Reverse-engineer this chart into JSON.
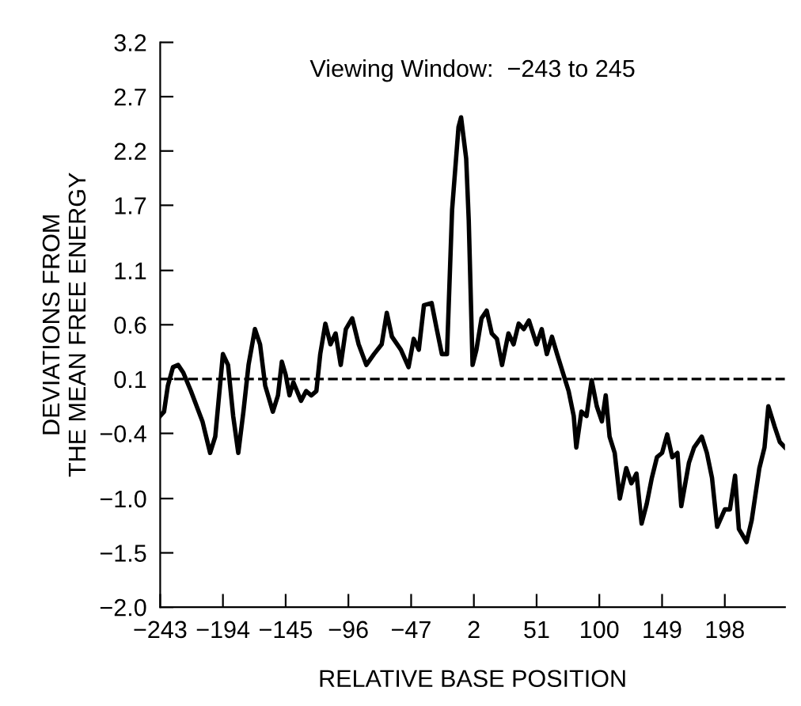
{
  "chart_data": {
    "type": "line",
    "title": "Viewing Window:  −243 to 245",
    "xlabel": "RELATIVE BASE POSITION",
    "ylabel": "DEVIATIONS FROM\nTHE MEAN FREE ENERGY",
    "series": [
      {
        "color": "#000000",
        "x": [
          -243,
          -240,
          -237,
          -233,
          -229,
          -225,
          -219,
          -210,
          -204,
          -200,
          -194,
          -190,
          -186,
          -182,
          -178,
          -174,
          -169,
          -165,
          -161,
          -155,
          -151,
          -148,
          -145,
          -142,
          -139,
          -133,
          -129,
          -125,
          -121,
          -118,
          -114,
          -110,
          -106,
          -102,
          -98,
          -93,
          -88,
          -82,
          -76,
          -70,
          -66,
          -62,
          -55,
          -49,
          -45,
          -41,
          -37,
          -31,
          -27,
          -23,
          -19,
          -15,
          -10,
          -8,
          -4,
          -2,
          1,
          4,
          8,
          12,
          16,
          20,
          24,
          29,
          33,
          37,
          41,
          45,
          51,
          55,
          59,
          63,
          67,
          72,
          76,
          80,
          82,
          86,
          90,
          94,
          98,
          102,
          105,
          108,
          112,
          116,
          121,
          125,
          129,
          133,
          137,
          141,
          145,
          149,
          153,
          157,
          161,
          164,
          170,
          174,
          180,
          184,
          188,
          192,
          198,
          202,
          206,
          209,
          215,
          219,
          225,
          229,
          232,
          237,
          241,
          245
        ],
        "values": [
          -0.24,
          -0.2,
          0.04,
          0.21,
          0.23,
          0.16,
          -0.01,
          -0.29,
          -0.58,
          -0.43,
          0.33,
          0.23,
          -0.24,
          -0.58,
          -0.2,
          0.23,
          0.56,
          0.42,
          0.04,
          -0.2,
          -0.05,
          0.26,
          0.14,
          -0.05,
          0.07,
          -0.1,
          -0.01,
          -0.05,
          -0.01,
          0.33,
          0.61,
          0.42,
          0.52,
          0.23,
          0.56,
          0.66,
          0.42,
          0.23,
          0.33,
          0.42,
          0.71,
          0.49,
          0.37,
          0.21,
          0.47,
          0.37,
          0.78,
          0.8,
          0.56,
          0.33,
          0.33,
          1.66,
          2.42,
          2.51,
          2.13,
          1.56,
          0.23,
          0.37,
          0.66,
          0.73,
          0.52,
          0.47,
          0.23,
          0.52,
          0.42,
          0.61,
          0.56,
          0.64,
          0.42,
          0.56,
          0.33,
          0.49,
          0.33,
          0.14,
          -0.01,
          -0.24,
          -0.53,
          -0.2,
          -0.24,
          0.09,
          -0.15,
          -0.29,
          -0.05,
          -0.43,
          -0.58,
          -1.0,
          -0.72,
          -0.86,
          -0.77,
          -1.23,
          -1.05,
          -0.81,
          -0.62,
          -0.58,
          -0.41,
          -0.62,
          -0.58,
          -1.07,
          -0.67,
          -0.53,
          -0.43,
          -0.58,
          -0.81,
          -1.26,
          -1.1,
          -1.1,
          -0.79,
          -1.28,
          -1.4,
          -1.2,
          -0.72,
          -0.53,
          -0.15,
          -0.34,
          -0.48,
          -0.53
        ]
      }
    ],
    "xlim": [
      -243,
      245
    ],
    "xticks": [
      -243,
      -194,
      -145,
      -96,
      -47,
      2,
      51,
      100,
      149,
      198
    ],
    "ylim": [
      -2.0,
      3.2
    ],
    "yticks": [
      {
        "value": -2.0,
        "label": "−2.0"
      },
      -1.5,
      {
        "value": -1.0,
        "label": "−1.0"
      },
      -0.4,
      0.1,
      0.6,
      1.1,
      1.7,
      2.2,
      2.7,
      3.2
    ],
    "ref_lines": [
      {
        "axis": "y",
        "value": 0.1,
        "label": null,
        "color": "#000000",
        "line_style": "dashed"
      }
    ],
    "grid": false,
    "marker": "none",
    "line_style": "solid"
  }
}
